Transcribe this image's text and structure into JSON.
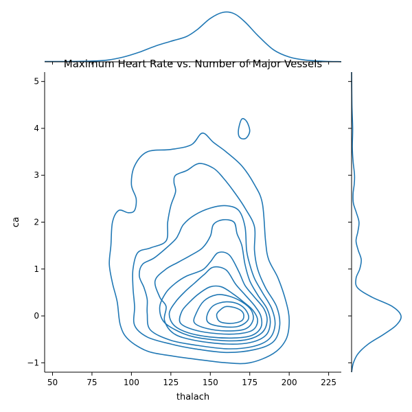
{
  "chart_data": {
    "type": "kde-contour-joint",
    "title": "Maximum Heart Rate vs. Number of Major Vessels",
    "xlabel": "thalach",
    "ylabel": "ca",
    "xlim": [
      45,
      233
    ],
    "ylim": [
      -1.2,
      5.2
    ],
    "xticks": [
      "50",
      "75",
      "100",
      "125",
      "150",
      "175",
      "200",
      "225"
    ],
    "yticks": [
      "−1",
      "0",
      "1",
      "2",
      "3",
      "4",
      "5"
    ],
    "color": "#1f77b4",
    "density_center": {
      "x": 160,
      "y": 0.05
    },
    "contours": [
      {
        "level": 1,
        "points": [
          [
            98,
            2.2
          ],
          [
            92,
            2.25
          ],
          [
            88,
            2.0
          ],
          [
            87,
            1.5
          ],
          [
            86,
            1.1
          ],
          [
            88,
            0.7
          ],
          [
            91,
            0.3
          ],
          [
            93,
            -0.2
          ],
          [
            98,
            -0.5
          ],
          [
            110,
            -0.75
          ],
          [
            125,
            -0.85
          ],
          [
            140,
            -0.92
          ],
          [
            160,
            -1.0
          ],
          [
            175,
            -1.0
          ],
          [
            190,
            -0.8
          ],
          [
            198,
            -0.5
          ],
          [
            200,
            -0.1
          ],
          [
            198,
            0.3
          ],
          [
            193,
            0.8
          ],
          [
            187,
            1.2
          ],
          [
            185,
            1.6
          ],
          [
            183,
            2.4
          ],
          [
            178,
            2.8
          ],
          [
            170,
            3.2
          ],
          [
            160,
            3.5
          ],
          [
            152,
            3.7
          ],
          [
            145,
            3.9
          ],
          [
            138,
            3.65
          ],
          [
            125,
            3.55
          ],
          [
            110,
            3.5
          ],
          [
            102,
            3.2
          ],
          [
            100,
            2.8
          ],
          [
            103,
            2.5
          ],
          [
            102,
            2.25
          ]
        ]
      },
      {
        "level": 2,
        "points": [
          [
            128,
            2.65
          ],
          [
            125,
            2.35
          ],
          [
            123,
            2.0
          ],
          [
            122,
            1.6
          ],
          [
            112,
            1.45
          ],
          [
            104,
            1.35
          ],
          [
            101,
            1.0
          ],
          [
            101,
            0.6
          ],
          [
            102,
            0.2
          ],
          [
            102,
            -0.2
          ],
          [
            110,
            -0.45
          ],
          [
            125,
            -0.6
          ],
          [
            140,
            -0.7
          ],
          [
            160,
            -0.78
          ],
          [
            178,
            -0.72
          ],
          [
            190,
            -0.55
          ],
          [
            194,
            -0.2
          ],
          [
            192,
            0.2
          ],
          [
            185,
            0.6
          ],
          [
            180,
            1.0
          ],
          [
            178,
            1.4
          ],
          [
            178,
            1.9
          ],
          [
            172,
            2.3
          ],
          [
            165,
            2.65
          ],
          [
            158,
            2.95
          ],
          [
            152,
            3.15
          ],
          [
            143,
            3.25
          ],
          [
            135,
            3.1
          ],
          [
            128,
            3.0
          ],
          [
            127,
            2.85
          ]
        ]
      },
      {
        "level": 3,
        "points": [
          [
            127,
            1.6
          ],
          [
            115,
            1.25
          ],
          [
            107,
            1.1
          ],
          [
            105,
            0.85
          ],
          [
            108,
            0.6
          ],
          [
            110,
            0.35
          ],
          [
            110,
            0.05
          ],
          [
            112,
            -0.3
          ],
          [
            125,
            -0.52
          ],
          [
            140,
            -0.62
          ],
          [
            160,
            -0.7
          ],
          [
            176,
            -0.66
          ],
          [
            187,
            -0.5
          ],
          [
            191,
            -0.2
          ],
          [
            189,
            0.15
          ],
          [
            183,
            0.5
          ],
          [
            178,
            0.8
          ],
          [
            175,
            1.1
          ],
          [
            173,
            1.4
          ],
          [
            172,
            1.9
          ],
          [
            168,
            2.25
          ],
          [
            160,
            2.35
          ],
          [
            150,
            2.3
          ],
          [
            140,
            2.15
          ],
          [
            133,
            1.95
          ],
          [
            130,
            1.75
          ]
        ]
      },
      {
        "level": 4,
        "points": [
          [
            122,
            1.0
          ],
          [
            115,
            0.75
          ],
          [
            118,
            0.4
          ],
          [
            122,
            0.2
          ],
          [
            121,
            -0.1
          ],
          [
            127,
            -0.38
          ],
          [
            140,
            -0.52
          ],
          [
            160,
            -0.6
          ],
          [
            175,
            -0.57
          ],
          [
            185,
            -0.42
          ],
          [
            188,
            -0.15
          ],
          [
            186,
            0.15
          ],
          [
            180,
            0.45
          ],
          [
            175,
            0.75
          ],
          [
            172,
            1.1
          ],
          [
            170,
            1.5
          ],
          [
            167,
            1.75
          ],
          [
            165,
            2.0
          ],
          [
            158,
            2.05
          ],
          [
            152,
            1.95
          ],
          [
            150,
            1.7
          ],
          [
            145,
            1.45
          ],
          [
            138,
            1.3
          ],
          [
            130,
            1.15
          ]
        ]
      },
      {
        "level": 5,
        "points": [
          [
            122,
            0.5
          ],
          [
            118,
            0.2
          ],
          [
            120,
            -0.1
          ],
          [
            128,
            -0.3
          ],
          [
            140,
            -0.45
          ],
          [
            160,
            -0.53
          ],
          [
            174,
            -0.5
          ],
          [
            183,
            -0.35
          ],
          [
            186,
            -0.1
          ],
          [
            184,
            0.15
          ],
          [
            178,
            0.4
          ],
          [
            172,
            0.65
          ],
          [
            168,
            0.95
          ],
          [
            162,
            1.3
          ],
          [
            155,
            1.35
          ],
          [
            150,
            1.15
          ],
          [
            145,
            0.98
          ],
          [
            135,
            0.85
          ],
          [
            128,
            0.7
          ]
        ]
      },
      {
        "level": 6,
        "points": [
          [
            128,
            0.3
          ],
          [
            124,
            0.05
          ],
          [
            127,
            -0.2
          ],
          [
            136,
            -0.36
          ],
          [
            150,
            -0.45
          ],
          [
            165,
            -0.47
          ],
          [
            176,
            -0.42
          ],
          [
            182,
            -0.25
          ],
          [
            182,
            0.0
          ],
          [
            178,
            0.22
          ],
          [
            172,
            0.45
          ],
          [
            166,
            0.68
          ],
          [
            160,
            0.98
          ],
          [
            152,
            1.04
          ],
          [
            146,
            0.88
          ],
          [
            140,
            0.7
          ],
          [
            134,
            0.52
          ]
        ]
      },
      {
        "level": 7,
        "points": [
          [
            132,
            0.1
          ],
          [
            131,
            -0.15
          ],
          [
            140,
            -0.3
          ],
          [
            155,
            -0.38
          ],
          [
            168,
            -0.38
          ],
          [
            177,
            -0.3
          ],
          [
            180,
            -0.1
          ],
          [
            177,
            0.12
          ],
          [
            171,
            0.3
          ],
          [
            164,
            0.48
          ],
          [
            157,
            0.62
          ],
          [
            150,
            0.62
          ],
          [
            143,
            0.48
          ],
          [
            137,
            0.3
          ]
        ]
      },
      {
        "level": 8,
        "points": [
          [
            141,
            0.05
          ],
          [
            140,
            -0.15
          ],
          [
            148,
            -0.27
          ],
          [
            160,
            -0.32
          ],
          [
            172,
            -0.28
          ],
          [
            177,
            -0.1
          ],
          [
            176,
            0.12
          ],
          [
            170,
            0.3
          ],
          [
            162,
            0.42
          ],
          [
            154,
            0.45
          ],
          [
            146,
            0.32
          ]
        ]
      },
      {
        "level": 9,
        "points": [
          [
            148,
            0.02
          ],
          [
            149,
            -0.15
          ],
          [
            158,
            -0.23
          ],
          [
            168,
            -0.22
          ],
          [
            174,
            -0.08
          ],
          [
            173,
            0.1
          ],
          [
            168,
            0.25
          ],
          [
            160,
            0.3
          ],
          [
            152,
            0.22
          ]
        ]
      },
      {
        "level": 10,
        "points": [
          [
            154,
            0.02
          ],
          [
            156,
            -0.12
          ],
          [
            163,
            -0.16
          ],
          [
            170,
            -0.1
          ],
          [
            171,
            0.05
          ],
          [
            167,
            0.16
          ],
          [
            160,
            0.2
          ],
          [
            156,
            0.12
          ]
        ]
      },
      {
        "level": 11,
        "points": [
          [
            168,
            4.0
          ],
          [
            170,
            4.2
          ],
          [
            173,
            4.15
          ],
          [
            175,
            3.95
          ],
          [
            173,
            3.8
          ],
          [
            170,
            3.78
          ],
          [
            168,
            3.85
          ]
        ]
      }
    ],
    "marginal_x": [
      [
        45,
        0.002
      ],
      [
        60,
        0.003
      ],
      [
        75,
        0.006
      ],
      [
        85,
        0.015
      ],
      [
        95,
        0.04
      ],
      [
        105,
        0.08
      ],
      [
        115,
        0.13
      ],
      [
        125,
        0.17
      ],
      [
        135,
        0.21
      ],
      [
        142,
        0.27
      ],
      [
        150,
        0.36
      ],
      [
        158,
        0.41
      ],
      [
        165,
        0.4
      ],
      [
        172,
        0.33
      ],
      [
        180,
        0.22
      ],
      [
        190,
        0.1
      ],
      [
        200,
        0.04
      ],
      [
        210,
        0.015
      ],
      [
        222,
        0.004
      ],
      [
        233,
        0.001
      ]
    ],
    "marginal_y": [
      [
        -1.2,
        0.0
      ],
      [
        -1.0,
        0.05
      ],
      [
        -0.8,
        0.18
      ],
      [
        -0.6,
        0.45
      ],
      [
        -0.4,
        0.85
      ],
      [
        -0.2,
        1.2
      ],
      [
        0.0,
        1.33
      ],
      [
        0.2,
        1.1
      ],
      [
        0.4,
        0.55
      ],
      [
        0.6,
        0.16
      ],
      [
        0.8,
        0.12
      ],
      [
        1.0,
        0.22
      ],
      [
        1.2,
        0.26
      ],
      [
        1.4,
        0.18
      ],
      [
        1.6,
        0.12
      ],
      [
        1.8,
        0.17
      ],
      [
        2.0,
        0.2
      ],
      [
        2.2,
        0.13
      ],
      [
        2.4,
        0.05
      ],
      [
        2.6,
        0.04
      ],
      [
        2.8,
        0.07
      ],
      [
        3.0,
        0.08
      ],
      [
        3.3,
        0.04
      ],
      [
        3.6,
        0.02
      ],
      [
        4.0,
        0.03
      ],
      [
        4.5,
        0.01
      ],
      [
        5.2,
        0.0
      ]
    ]
  }
}
